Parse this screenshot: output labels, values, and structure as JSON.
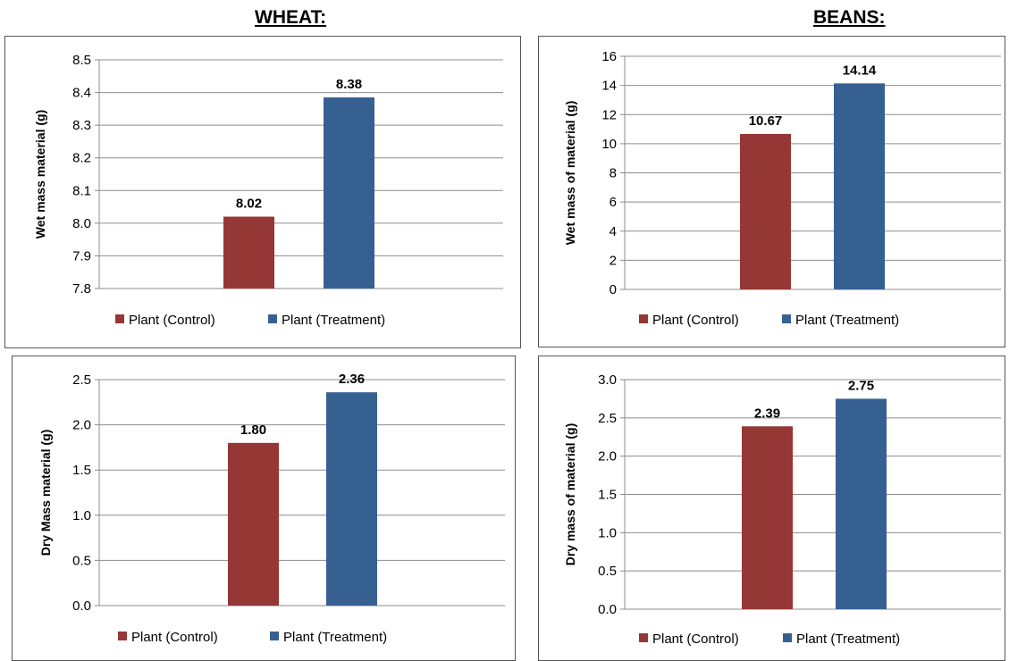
{
  "headings": {
    "wheat": "WHEAT:",
    "beans": "BEANS:"
  },
  "colors": {
    "control": "#953735",
    "treatment": "#376092",
    "grid": "#8c8c8c",
    "axis": "#8c8c8c"
  },
  "legend": [
    "Plant (Control)",
    "Plant (Treatment)"
  ],
  "chart_data": [
    {
      "type": "bar",
      "group": "WHEAT:",
      "title": "",
      "ylabel": "Wet mass material (g)",
      "xlabel": "",
      "ylim": [
        7.8,
        8.5
      ],
      "yticks": [
        "7.8",
        "7.9",
        "8.0",
        "8.1",
        "8.2",
        "8.3",
        "8.4",
        "8.5"
      ],
      "series": [
        {
          "name": "Plant (Control)",
          "values": [
            8.02
          ],
          "labels": [
            "8.02"
          ]
        },
        {
          "name": "Plant (Treatment)",
          "values": [
            8.385
          ],
          "labels": [
            "8.38"
          ]
        }
      ],
      "grid": true,
      "legend_position": "bottom"
    },
    {
      "type": "bar",
      "group": "BEANS:",
      "title": "",
      "ylabel": "Wet mass of material (g)",
      "xlabel": "",
      "ylim": [
        0,
        16
      ],
      "yticks": [
        "0",
        "2",
        "4",
        "6",
        "8",
        "10",
        "12",
        "14",
        "16"
      ],
      "series": [
        {
          "name": "Plant (Control)",
          "values": [
            10.67
          ],
          "labels": [
            "10.67"
          ]
        },
        {
          "name": "Plant (Treatment)",
          "values": [
            14.14
          ],
          "labels": [
            "14.14"
          ]
        }
      ],
      "grid": true,
      "legend_position": "bottom"
    },
    {
      "type": "bar",
      "group": "WHEAT:",
      "title": "",
      "ylabel": "Dry Mass material (g)",
      "xlabel": "",
      "ylim": [
        0,
        2.5
      ],
      "yticks": [
        "0.0",
        "0.5",
        "1.0",
        "1.5",
        "2.0",
        "2.5"
      ],
      "series": [
        {
          "name": "Plant (Control)",
          "values": [
            1.8
          ],
          "labels": [
            "1.80"
          ]
        },
        {
          "name": "Plant (Treatment)",
          "values": [
            2.36
          ],
          "labels": [
            "2.36"
          ]
        }
      ],
      "grid": true,
      "legend_position": "bottom"
    },
    {
      "type": "bar",
      "group": "BEANS:",
      "title": "",
      "ylabel": "Dry mass of material (g)",
      "xlabel": "",
      "ylim": [
        0,
        3.0
      ],
      "yticks": [
        "0.0",
        "0.5",
        "1.0",
        "1.5",
        "2.0",
        "2.5",
        "3.0"
      ],
      "series": [
        {
          "name": "Plant (Control)",
          "values": [
            2.39
          ],
          "labels": [
            "2.39"
          ]
        },
        {
          "name": "Plant (Treatment)",
          "values": [
            2.75
          ],
          "labels": [
            "2.75"
          ]
        }
      ],
      "grid": true,
      "legend_position": "bottom"
    }
  ]
}
